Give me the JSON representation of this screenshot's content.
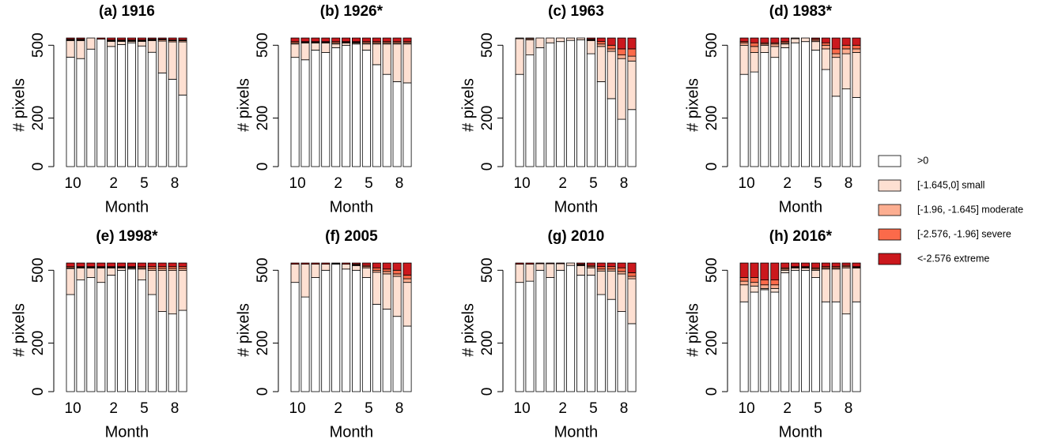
{
  "legend": [
    {
      "name": ">0",
      "color": "#ffffff"
    },
    {
      "name": "[-1.645,0] small",
      "color": "#fee0d2"
    },
    {
      "name": "[-1.96, -1.645] moderate",
      "color": "#fcae91"
    },
    {
      "name": "[-2.576, -1.96] severe",
      "color": "#fb6a4a"
    },
    {
      "name": "<-2.576 extreme",
      "color": "#cb181d"
    }
  ],
  "chart_data": [
    {
      "type": "bar",
      "stacked": true,
      "title": "(a) 1916",
      "xlabel": "Month",
      "ylabel": "# pixels",
      "categories": [
        "10",
        null,
        null,
        null,
        "2",
        null,
        null,
        "5",
        null,
        null,
        "8",
        null
      ],
      "ylim": [
        0,
        540
      ],
      "yticks": [
        0,
        200,
        500
      ],
      "series": [
        {
          "values": [
            451,
            445,
            484,
            525,
            495,
            503,
            510,
            497,
            471,
            386,
            360,
            295
          ]
        },
        {
          "values": [
            68,
            74,
            46,
            0,
            21,
            13,
            6,
            19,
            48,
            131,
            154,
            219
          ]
        },
        {
          "values": [
            3,
            3,
            0,
            0,
            3,
            3,
            3,
            3,
            3,
            5,
            5,
            5
          ]
        },
        {
          "values": [
            3,
            3,
            0,
            0,
            3,
            3,
            3,
            3,
            3,
            3,
            3,
            3
          ]
        },
        {
          "values": [
            5,
            5,
            0,
            5,
            8,
            8,
            8,
            8,
            5,
            5,
            8,
            8
          ]
        }
      ]
    },
    {
      "type": "bar",
      "stacked": true,
      "title": "(b) 1926*",
      "xlabel": "Month",
      "ylabel": "# pixels",
      "categories": [
        "10",
        null,
        null,
        null,
        "2",
        null,
        null,
        "5",
        null,
        null,
        "8",
        null
      ],
      "ylim": [
        0,
        540
      ],
      "yticks": [
        0,
        200,
        500
      ],
      "series": [
        {
          "values": [
            450,
            440,
            480,
            470,
            490,
            500,
            505,
            480,
            420,
            380,
            350,
            345
          ]
        },
        {
          "values": [
            55,
            69,
            29,
            39,
            15,
            9,
            4,
            25,
            85,
            125,
            155,
            160
          ]
        },
        {
          "values": [
            5,
            3,
            3,
            3,
            5,
            3,
            3,
            5,
            5,
            5,
            5,
            5
          ]
        },
        {
          "values": [
            5,
            3,
            3,
            3,
            5,
            3,
            3,
            5,
            5,
            5,
            5,
            5
          ]
        },
        {
          "values": [
            15,
            15,
            15,
            15,
            15,
            15,
            15,
            15,
            15,
            15,
            15,
            15
          ]
        }
      ]
    },
    {
      "type": "bar",
      "stacked": true,
      "title": "(c) 1963",
      "xlabel": "Month",
      "ylabel": "# pixels",
      "categories": [
        "10",
        null,
        null,
        null,
        "2",
        null,
        null,
        "5",
        null,
        null,
        "8",
        null
      ],
      "ylim": [
        0,
        540
      ],
      "yticks": [
        0,
        200,
        500
      ],
      "series": [
        {
          "values": [
            380,
            460,
            490,
            510,
            515,
            520,
            522,
            465,
            350,
            280,
            195,
            235
          ]
        },
        {
          "values": [
            147,
            62,
            40,
            20,
            15,
            10,
            8,
            54,
            145,
            195,
            250,
            200
          ]
        },
        {
          "values": [
            3,
            5,
            0,
            0,
            0,
            0,
            0,
            3,
            10,
            10,
            15,
            20
          ]
        },
        {
          "values": [
            0,
            3,
            0,
            0,
            0,
            0,
            0,
            3,
            10,
            15,
            25,
            30
          ]
        },
        {
          "values": [
            0,
            0,
            0,
            0,
            0,
            0,
            0,
            5,
            15,
            30,
            45,
            45
          ]
        }
      ]
    },
    {
      "type": "bar",
      "stacked": true,
      "title": "(d) 1983*",
      "xlabel": "Month",
      "ylabel": "# pixels",
      "categories": [
        "10",
        null,
        null,
        null,
        "2",
        null,
        null,
        "5",
        null,
        null,
        "8",
        null
      ],
      "ylim": [
        0,
        540
      ],
      "yticks": [
        0,
        200,
        500
      ],
      "series": [
        {
          "values": [
            380,
            390,
            470,
            450,
            490,
            510,
            515,
            480,
            400,
            290,
            320,
            285
          ]
        },
        {
          "values": [
            120,
            80,
            30,
            45,
            15,
            17,
            15,
            35,
            85,
            160,
            145,
            185
          ]
        },
        {
          "values": [
            10,
            25,
            5,
            10,
            5,
            3,
            0,
            5,
            15,
            15,
            20,
            15
          ]
        },
        {
          "values": [
            5,
            15,
            5,
            5,
            5,
            0,
            0,
            5,
            10,
            20,
            15,
            15
          ]
        },
        {
          "values": [
            15,
            20,
            20,
            20,
            15,
            0,
            0,
            5,
            20,
            45,
            30,
            30
          ]
        }
      ]
    },
    {
      "type": "bar",
      "stacked": true,
      "title": "(e) 1998*",
      "xlabel": "Month",
      "ylabel": "# pixels",
      "categories": [
        "10",
        null,
        null,
        null,
        "2",
        null,
        null,
        "5",
        null,
        null,
        "8",
        null
      ],
      "ylim": [
        0,
        540
      ],
      "yticks": [
        0,
        200,
        500
      ],
      "series": [
        {
          "values": [
            400,
            460,
            470,
            450,
            480,
            500,
            505,
            460,
            400,
            330,
            320,
            335
          ]
        },
        {
          "values": [
            107,
            49,
            39,
            59,
            29,
            9,
            4,
            45,
            99,
            169,
            179,
            164
          ]
        },
        {
          "values": [
            3,
            3,
            3,
            3,
            3,
            3,
            3,
            5,
            8,
            8,
            8,
            8
          ]
        },
        {
          "values": [
            5,
            3,
            3,
            3,
            3,
            3,
            3,
            5,
            8,
            8,
            8,
            8
          ]
        },
        {
          "values": [
            15,
            15,
            15,
            15,
            15,
            15,
            15,
            15,
            15,
            15,
            15,
            15
          ]
        }
      ]
    },
    {
      "type": "bar",
      "stacked": true,
      "title": "(f) 2005",
      "xlabel": "Month",
      "ylabel": "# pixels",
      "categories": [
        "10",
        null,
        null,
        null,
        "2",
        null,
        null,
        "5",
        null,
        null,
        "8",
        null
      ],
      "ylim": [
        0,
        540
      ],
      "yticks": [
        0,
        200,
        500
      ],
      "series": [
        {
          "values": [
            450,
            390,
            470,
            500,
            525,
            505,
            500,
            470,
            360,
            340,
            310,
            270
          ]
        },
        {
          "values": [
            75,
            135,
            55,
            25,
            2,
            20,
            19,
            40,
            132,
            145,
            165,
            180
          ]
        },
        {
          "values": [
            0,
            0,
            0,
            0,
            0,
            0,
            3,
            5,
            8,
            10,
            10,
            15
          ]
        },
        {
          "values": [
            0,
            0,
            0,
            0,
            0,
            0,
            3,
            5,
            10,
            10,
            15,
            15
          ]
        },
        {
          "values": [
            5,
            5,
            5,
            5,
            3,
            5,
            5,
            10,
            20,
            25,
            30,
            50
          ]
        }
      ]
    },
    {
      "type": "bar",
      "stacked": true,
      "title": "(g) 2010",
      "xlabel": "Month",
      "ylabel": "# pixels",
      "categories": [
        "10",
        null,
        null,
        null,
        "2",
        null,
        null,
        "5",
        null,
        null,
        "8",
        null
      ],
      "ylim": [
        0,
        540
      ],
      "yticks": [
        0,
        200,
        500
      ],
      "series": [
        {
          "values": [
            450,
            455,
            500,
            470,
            500,
            520,
            480,
            480,
            400,
            380,
            330,
            280
          ]
        },
        {
          "values": [
            75,
            70,
            27,
            57,
            27,
            10,
            39,
            30,
            97,
            117,
            155,
            185
          ]
        },
        {
          "values": [
            0,
            0,
            0,
            0,
            0,
            0,
            3,
            5,
            8,
            8,
            10,
            10
          ]
        },
        {
          "values": [
            0,
            0,
            0,
            0,
            0,
            0,
            3,
            5,
            10,
            10,
            15,
            15
          ]
        },
        {
          "values": [
            5,
            5,
            3,
            3,
            3,
            0,
            5,
            10,
            15,
            15,
            20,
            40
          ]
        }
      ]
    },
    {
      "type": "bar",
      "stacked": true,
      "title": "(h) 2016*",
      "xlabel": "Month",
      "ylabel": "# pixels",
      "categories": [
        "10",
        null,
        null,
        null,
        "2",
        null,
        null,
        "5",
        null,
        null,
        "8",
        null
      ],
      "ylim": [
        0,
        540
      ],
      "yticks": [
        0,
        200,
        500
      ],
      "series": [
        {
          "values": [
            370,
            410,
            420,
            410,
            490,
            500,
            500,
            470,
            370,
            370,
            320,
            370
          ]
        },
        {
          "values": [
            70,
            25,
            5,
            15,
            10,
            9,
            9,
            30,
            135,
            135,
            190,
            139
          ]
        },
        {
          "values": [
            15,
            15,
            15,
            15,
            5,
            3,
            3,
            5,
            5,
            5,
            5,
            3
          ]
        },
        {
          "values": [
            15,
            20,
            20,
            20,
            5,
            3,
            3,
            5,
            5,
            5,
            5,
            3
          ]
        },
        {
          "values": [
            60,
            60,
            70,
            70,
            20,
            15,
            15,
            20,
            15,
            15,
            10,
            15
          ]
        }
      ]
    }
  ]
}
